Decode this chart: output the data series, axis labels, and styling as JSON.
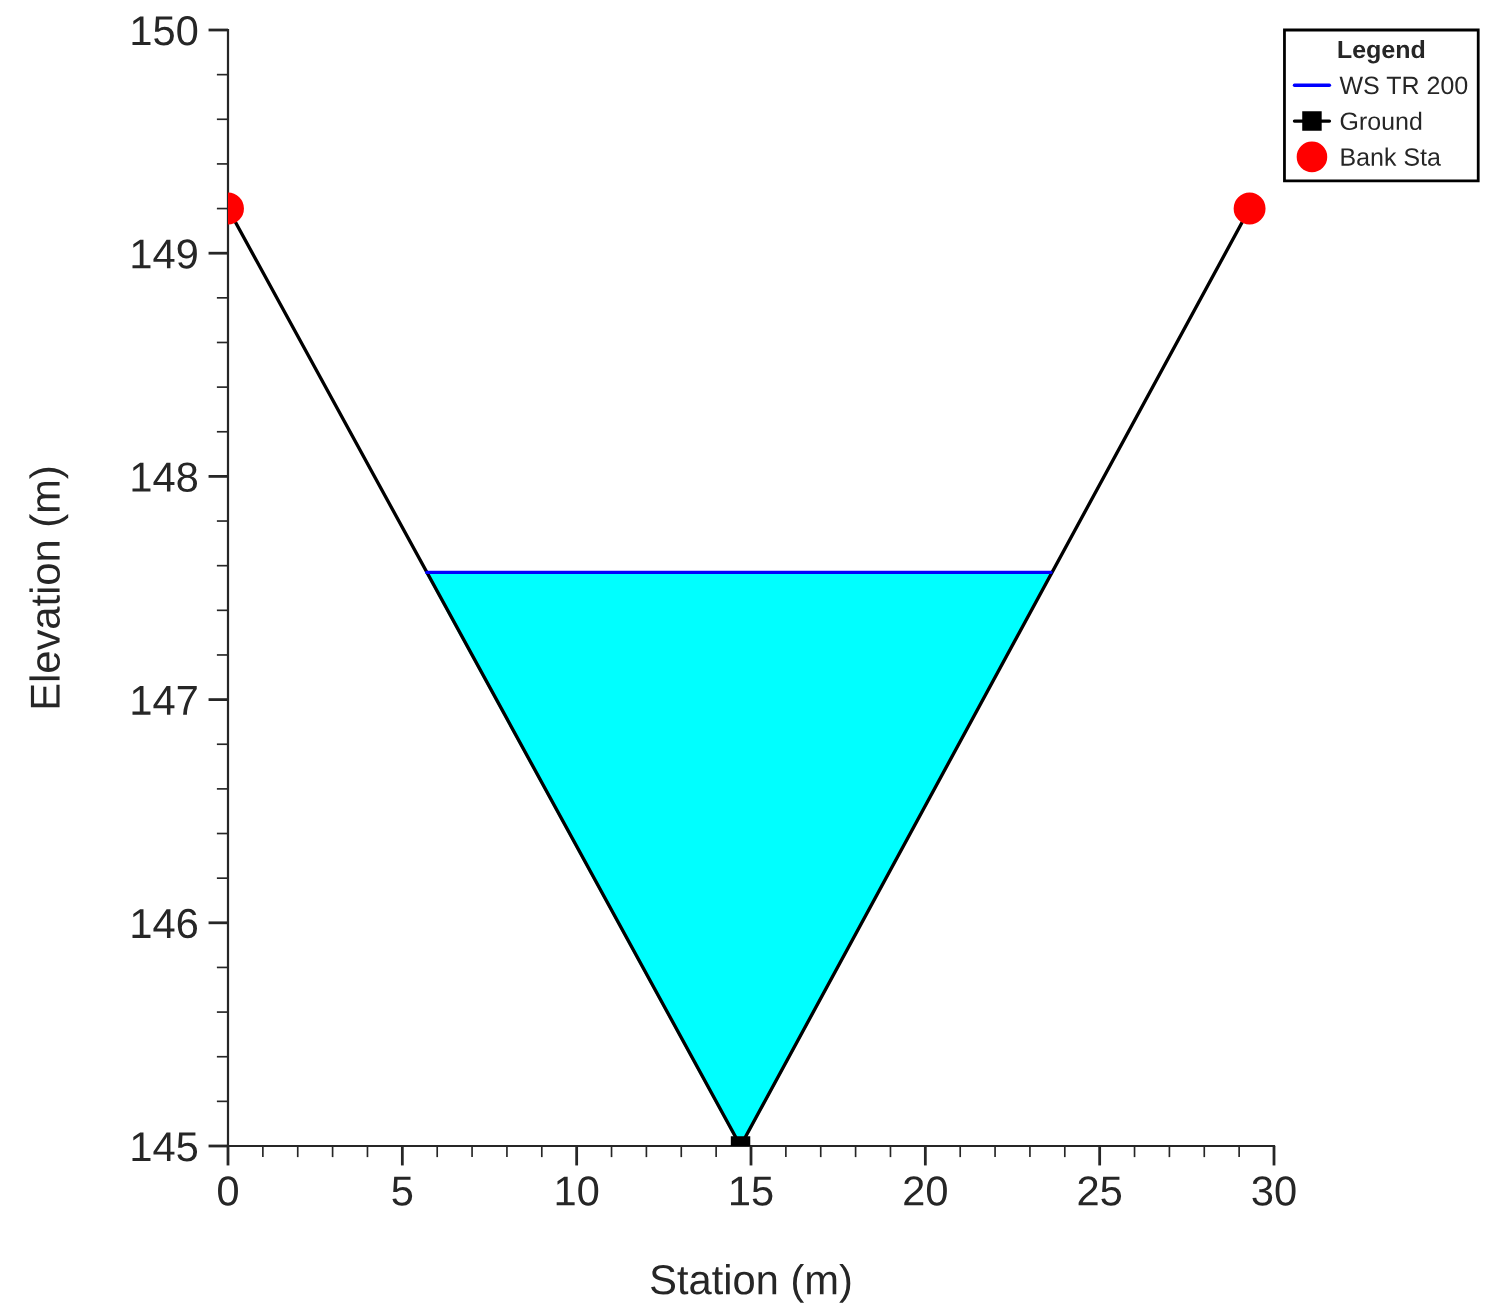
{
  "chart_data": {
    "type": "line",
    "xlabel": "Station (m)",
    "ylabel": "Elevation (m)",
    "legend_title": "Legend",
    "legend": "top right",
    "xlim": [
      0,
      30
    ],
    "xticks": [
      0,
      5,
      10,
      15,
      20,
      25,
      30
    ],
    "ylim": [
      145,
      150
    ],
    "yticks": [
      145,
      146,
      147,
      148,
      149,
      150
    ],
    "grid": false,
    "series": [
      {
        "name": "WS TR 200",
        "type": "line",
        "color": "#0000ff",
        "colors": [
          "#00ffff",
          "#00ffff",
          "#00ffff"
        ],
        "x": [
          5.7,
          14.7,
          23.6
        ],
        "values": [
          147.57,
          147.57,
          147.57
        ],
        "lower": [
          147.57,
          145.0,
          147.57
        ],
        "upper": [
          147.57,
          147.57,
          147.57
        ],
        "marker": "none"
      },
      {
        "name": "Ground",
        "color": "#000000",
        "x": [
          0,
          14.7,
          29.3
        ],
        "values": [
          149.2,
          145.0,
          149.2
        ],
        "marker": "square"
      },
      {
        "name": "Bank Sta",
        "type": "scatter",
        "color": "#ff0000",
        "x": [
          0,
          29.3
        ],
        "values": [
          149.2,
          149.2
        ],
        "marker": "circle"
      }
    ]
  }
}
